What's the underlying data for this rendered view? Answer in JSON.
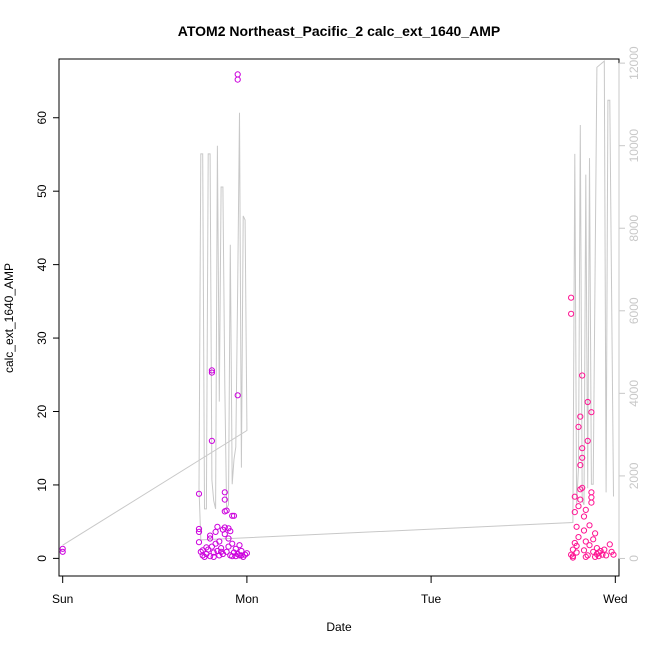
{
  "chart_data": {
    "type": "scatter",
    "title": "ATOM2 Northeast_Pacific_2 calc_ext_1640_AMP",
    "xlabel": "Date",
    "ylabel": "calc_ext_1640_AMP",
    "x_ticks": [
      "Sun",
      "Mon",
      "Tue",
      "Wed"
    ],
    "y_ticks": [
      "0",
      "10",
      "20",
      "30",
      "40",
      "50",
      "60"
    ],
    "y2_ticks": [
      "0",
      "2000",
      "4000",
      "6000",
      "8000",
      "10000",
      "12000"
    ],
    "xlim": [
      -0.02,
      3.02
    ],
    "ylim": [
      -2.4,
      68
    ],
    "y2lim": [
      -425,
      12100
    ],
    "colors": {
      "points_early": "#cc00dd",
      "points_late": "#ff1493",
      "line": "#c8c8c8",
      "axis": "#000000",
      "right_axis": "#c8c8c8"
    },
    "series": [
      {
        "kind": "points",
        "y_axis": "left",
        "points": [
          [
            0.0,
            1.3
          ],
          [
            0.0,
            0.9
          ],
          [
            0.74,
            8.8
          ],
          [
            0.74,
            4.0
          ],
          [
            0.74,
            3.6
          ],
          [
            0.74,
            2.2
          ],
          [
            0.75,
            0.9
          ],
          [
            0.76,
            0.4
          ],
          [
            0.77,
            0.2
          ],
          [
            0.78,
            0.6
          ],
          [
            0.79,
            1.2
          ],
          [
            0.8,
            0.3
          ],
          [
            0.8,
            3.1
          ],
          [
            0.8,
            2.7
          ],
          [
            0.81,
            1.6
          ],
          [
            0.81,
            25.6
          ],
          [
            0.81,
            25.3
          ],
          [
            0.81,
            16.0
          ],
          [
            0.82,
            0.8
          ],
          [
            0.83,
            2.0
          ],
          [
            0.83,
            3.6
          ],
          [
            0.84,
            1.0
          ],
          [
            0.84,
            4.3
          ],
          [
            0.85,
            0.4
          ],
          [
            0.85,
            2.3
          ],
          [
            0.86,
            1.4
          ],
          [
            0.87,
            0.6
          ],
          [
            0.87,
            3.9
          ],
          [
            0.88,
            4.2
          ],
          [
            0.88,
            3.3
          ],
          [
            0.88,
            6.4
          ],
          [
            0.88,
            8.0
          ],
          [
            0.88,
            9.0
          ],
          [
            0.89,
            6.5
          ],
          [
            0.89,
            0.9
          ],
          [
            0.9,
            4.1
          ],
          [
            0.9,
            2.7
          ],
          [
            0.9,
            1.6
          ],
          [
            0.91,
            0.4
          ],
          [
            0.91,
            3.7
          ],
          [
            0.92,
            5.8
          ],
          [
            0.92,
            2.0
          ],
          [
            0.93,
            0.8
          ],
          [
            0.93,
            5.8
          ],
          [
            0.94,
            1.3
          ],
          [
            0.94,
            0.3
          ],
          [
            0.95,
            22.2
          ],
          [
            0.95,
            65.9
          ],
          [
            0.95,
            65.2
          ],
          [
            0.95,
            0.6
          ],
          [
            0.96,
            1.8
          ],
          [
            0.96,
            0.4
          ],
          [
            0.97,
            1.0
          ],
          [
            0.98,
            0.2
          ],
          [
            0.99,
            0.5
          ],
          [
            1.0,
            0.7
          ],
          [
            0.76,
            1.1
          ],
          [
            0.78,
            1.5
          ],
          [
            0.82,
            0.2
          ],
          [
            0.86,
            0.9
          ],
          [
            0.92,
            0.3
          ],
          [
            0.97,
            0.4
          ]
        ]
      },
      {
        "kind": "points",
        "y_axis": "left",
        "points": [
          [
            2.76,
            35.5
          ],
          [
            2.76,
            33.3
          ],
          [
            2.76,
            0.5
          ],
          [
            2.77,
            1.2
          ],
          [
            2.77,
            0.3
          ],
          [
            2.78,
            2.1
          ],
          [
            2.78,
            8.4
          ],
          [
            2.78,
            6.3
          ],
          [
            2.79,
            4.3
          ],
          [
            2.79,
            1.7
          ],
          [
            2.79,
            0.8
          ],
          [
            2.8,
            7.1
          ],
          [
            2.8,
            17.9
          ],
          [
            2.8,
            2.9
          ],
          [
            2.81,
            9.4
          ],
          [
            2.81,
            8.0
          ],
          [
            2.81,
            12.7
          ],
          [
            2.81,
            19.3
          ],
          [
            2.82,
            24.9
          ],
          [
            2.82,
            15.0
          ],
          [
            2.82,
            13.7
          ],
          [
            2.82,
            9.6
          ],
          [
            2.83,
            3.8
          ],
          [
            2.83,
            5.7
          ],
          [
            2.83,
            1.1
          ],
          [
            2.84,
            6.6
          ],
          [
            2.84,
            2.3
          ],
          [
            2.85,
            21.3
          ],
          [
            2.85,
            16.0
          ],
          [
            2.85,
            0.4
          ],
          [
            2.86,
            4.5
          ],
          [
            2.86,
            1.8
          ],
          [
            2.87,
            19.9
          ],
          [
            2.87,
            8.3
          ],
          [
            2.87,
            7.6
          ],
          [
            2.87,
            9.0
          ],
          [
            2.88,
            2.6
          ],
          [
            2.88,
            0.9
          ],
          [
            2.89,
            3.4
          ],
          [
            2.89,
            0.2
          ],
          [
            2.9,
            1.4
          ],
          [
            2.9,
            0.6
          ],
          [
            2.91,
            0.3
          ],
          [
            2.92,
            1.0
          ],
          [
            2.93,
            0.5
          ],
          [
            2.94,
            1.2
          ],
          [
            2.95,
            0.4
          ],
          [
            2.97,
            1.9
          ],
          [
            2.98,
            0.9
          ],
          [
            2.99,
            0.5
          ],
          [
            2.77,
            0.1
          ],
          [
            2.84,
            0.2
          ],
          [
            2.91,
            0.8
          ]
        ]
      },
      {
        "kind": "line",
        "y_axis": "right",
        "points": [
          [
            0.0,
            320
          ],
          [
            1.0,
            3100
          ],
          [
            1.0,
            3200
          ],
          [
            0.99,
            8200
          ],
          [
            0.98,
            8300
          ],
          [
            0.97,
            2200
          ],
          [
            0.96,
            10800
          ],
          [
            0.95,
            6600
          ],
          [
            0.94,
            2700
          ],
          [
            0.93,
            2400
          ],
          [
            0.92,
            1800
          ],
          [
            0.91,
            7600
          ],
          [
            0.9,
            1300
          ],
          [
            0.89,
            1200
          ],
          [
            0.88,
            4200
          ],
          [
            0.87,
            9000
          ],
          [
            0.86,
            9000
          ],
          [
            0.85,
            3800
          ],
          [
            0.84,
            10000
          ],
          [
            0.83,
            1200
          ],
          [
            0.82,
            1400
          ],
          [
            0.81,
            1900
          ],
          [
            0.8,
            9800
          ],
          [
            0.79,
            9800
          ],
          [
            0.78,
            1200
          ],
          [
            0.77,
            1200
          ],
          [
            0.76,
            9800
          ],
          [
            0.75,
            9800
          ],
          [
            0.74,
            1700
          ],
          [
            0.75,
            450
          ],
          [
            2.77,
            870
          ],
          [
            2.78,
            9800
          ],
          [
            2.79,
            1300
          ],
          [
            2.8,
            2200
          ],
          [
            2.81,
            10500
          ],
          [
            2.82,
            1400
          ],
          [
            2.83,
            1300
          ],
          [
            2.84,
            9300
          ],
          [
            2.85,
            1700
          ],
          [
            2.86,
            9700
          ],
          [
            2.87,
            1800
          ],
          [
            2.88,
            1800
          ],
          [
            2.9,
            11900
          ],
          [
            2.94,
            12050
          ],
          [
            2.95,
            1600
          ],
          [
            2.96,
            11100
          ],
          [
            2.97,
            11100
          ],
          [
            2.99,
            1500
          ]
        ]
      }
    ],
    "grid": false,
    "legend": "none"
  }
}
